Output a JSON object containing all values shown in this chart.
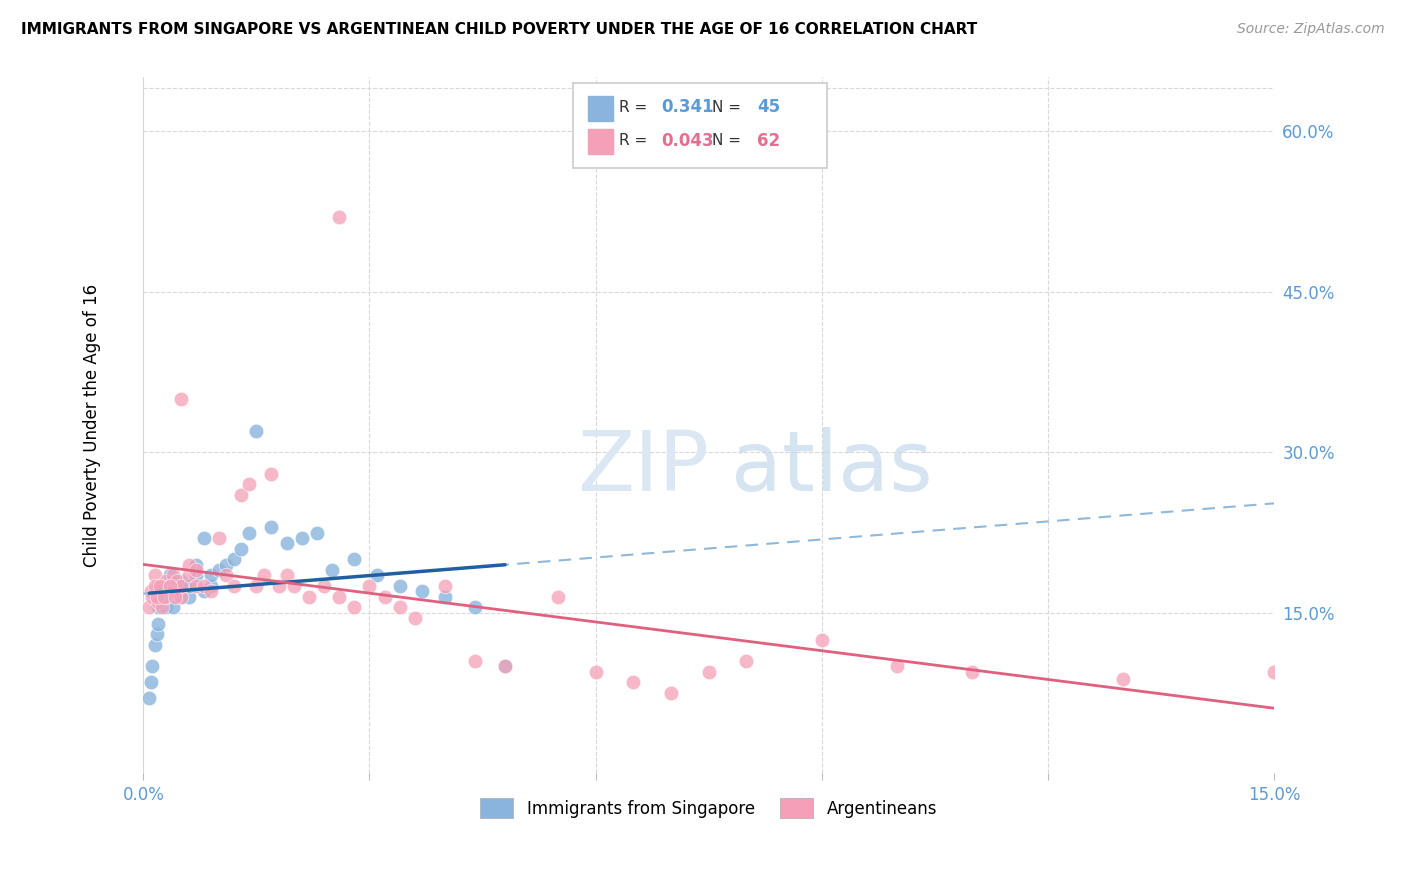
{
  "title": "IMMIGRANTS FROM SINGAPORE VS ARGENTINEAN CHILD POVERTY UNDER THE AGE OF 16 CORRELATION CHART",
  "source": "Source: ZipAtlas.com",
  "ylabel": "Child Poverty Under the Age of 16",
  "x_min": 0.0,
  "x_max": 0.15,
  "y_min": 0.0,
  "y_max": 0.65,
  "legend_label1": "Immigrants from Singapore",
  "legend_label2": "Argentineans",
  "R1": "0.341",
  "N1": "45",
  "R2": "0.043",
  "N2": "62",
  "color_blue": "#8ab4dd",
  "color_pink": "#f4a0b8",
  "color_blue_line": "#2060a0",
  "color_blue_dashed": "#90b8d8",
  "color_pink_line": "#e06080",
  "grid_color": "#d8d8d8",
  "tick_color": "#5b9bd5",
  "sg_x": [
    0.0008,
    0.001,
    0.0012,
    0.0015,
    0.0018,
    0.002,
    0.002,
    0.0022,
    0.0025,
    0.003,
    0.003,
    0.0032,
    0.0035,
    0.004,
    0.004,
    0.0042,
    0.005,
    0.005,
    0.0055,
    0.006,
    0.006,
    0.007,
    0.007,
    0.008,
    0.008,
    0.009,
    0.009,
    0.01,
    0.011,
    0.012,
    0.013,
    0.014,
    0.015,
    0.017,
    0.019,
    0.021,
    0.023,
    0.025,
    0.028,
    0.031,
    0.034,
    0.037,
    0.04,
    0.044,
    0.048
  ],
  "sg_y": [
    0.07,
    0.085,
    0.1,
    0.12,
    0.13,
    0.14,
    0.155,
    0.16,
    0.17,
    0.155,
    0.165,
    0.175,
    0.185,
    0.155,
    0.17,
    0.175,
    0.165,
    0.18,
    0.175,
    0.165,
    0.175,
    0.185,
    0.195,
    0.17,
    0.22,
    0.175,
    0.185,
    0.19,
    0.195,
    0.2,
    0.21,
    0.225,
    0.32,
    0.23,
    0.215,
    0.22,
    0.225,
    0.19,
    0.2,
    0.185,
    0.175,
    0.17,
    0.165,
    0.155,
    0.1
  ],
  "ar_x": [
    0.0008,
    0.001,
    0.0012,
    0.0015,
    0.002,
    0.002,
    0.0025,
    0.003,
    0.003,
    0.0035,
    0.004,
    0.004,
    0.0045,
    0.005,
    0.005,
    0.006,
    0.006,
    0.007,
    0.007,
    0.008,
    0.009,
    0.01,
    0.011,
    0.012,
    0.013,
    0.014,
    0.015,
    0.016,
    0.017,
    0.018,
    0.019,
    0.02,
    0.022,
    0.024,
    0.026,
    0.028,
    0.03,
    0.032,
    0.034,
    0.036,
    0.04,
    0.044,
    0.048,
    0.055,
    0.06,
    0.065,
    0.07,
    0.075,
    0.08,
    0.09,
    0.1,
    0.11,
    0.13,
    0.15,
    0.0015,
    0.0018,
    0.0022,
    0.0028,
    0.0035,
    0.0042,
    0.005,
    0.026
  ],
  "ar_y": [
    0.155,
    0.17,
    0.165,
    0.185,
    0.16,
    0.175,
    0.155,
    0.165,
    0.18,
    0.175,
    0.185,
    0.17,
    0.18,
    0.165,
    0.175,
    0.185,
    0.195,
    0.175,
    0.19,
    0.175,
    0.17,
    0.22,
    0.185,
    0.175,
    0.26,
    0.27,
    0.175,
    0.185,
    0.28,
    0.175,
    0.185,
    0.175,
    0.165,
    0.175,
    0.165,
    0.155,
    0.175,
    0.165,
    0.155,
    0.145,
    0.175,
    0.105,
    0.1,
    0.165,
    0.095,
    0.085,
    0.075,
    0.095,
    0.105,
    0.125,
    0.1,
    0.095,
    0.088,
    0.095,
    0.175,
    0.165,
    0.175,
    0.165,
    0.175,
    0.165,
    0.35,
    0.52
  ]
}
